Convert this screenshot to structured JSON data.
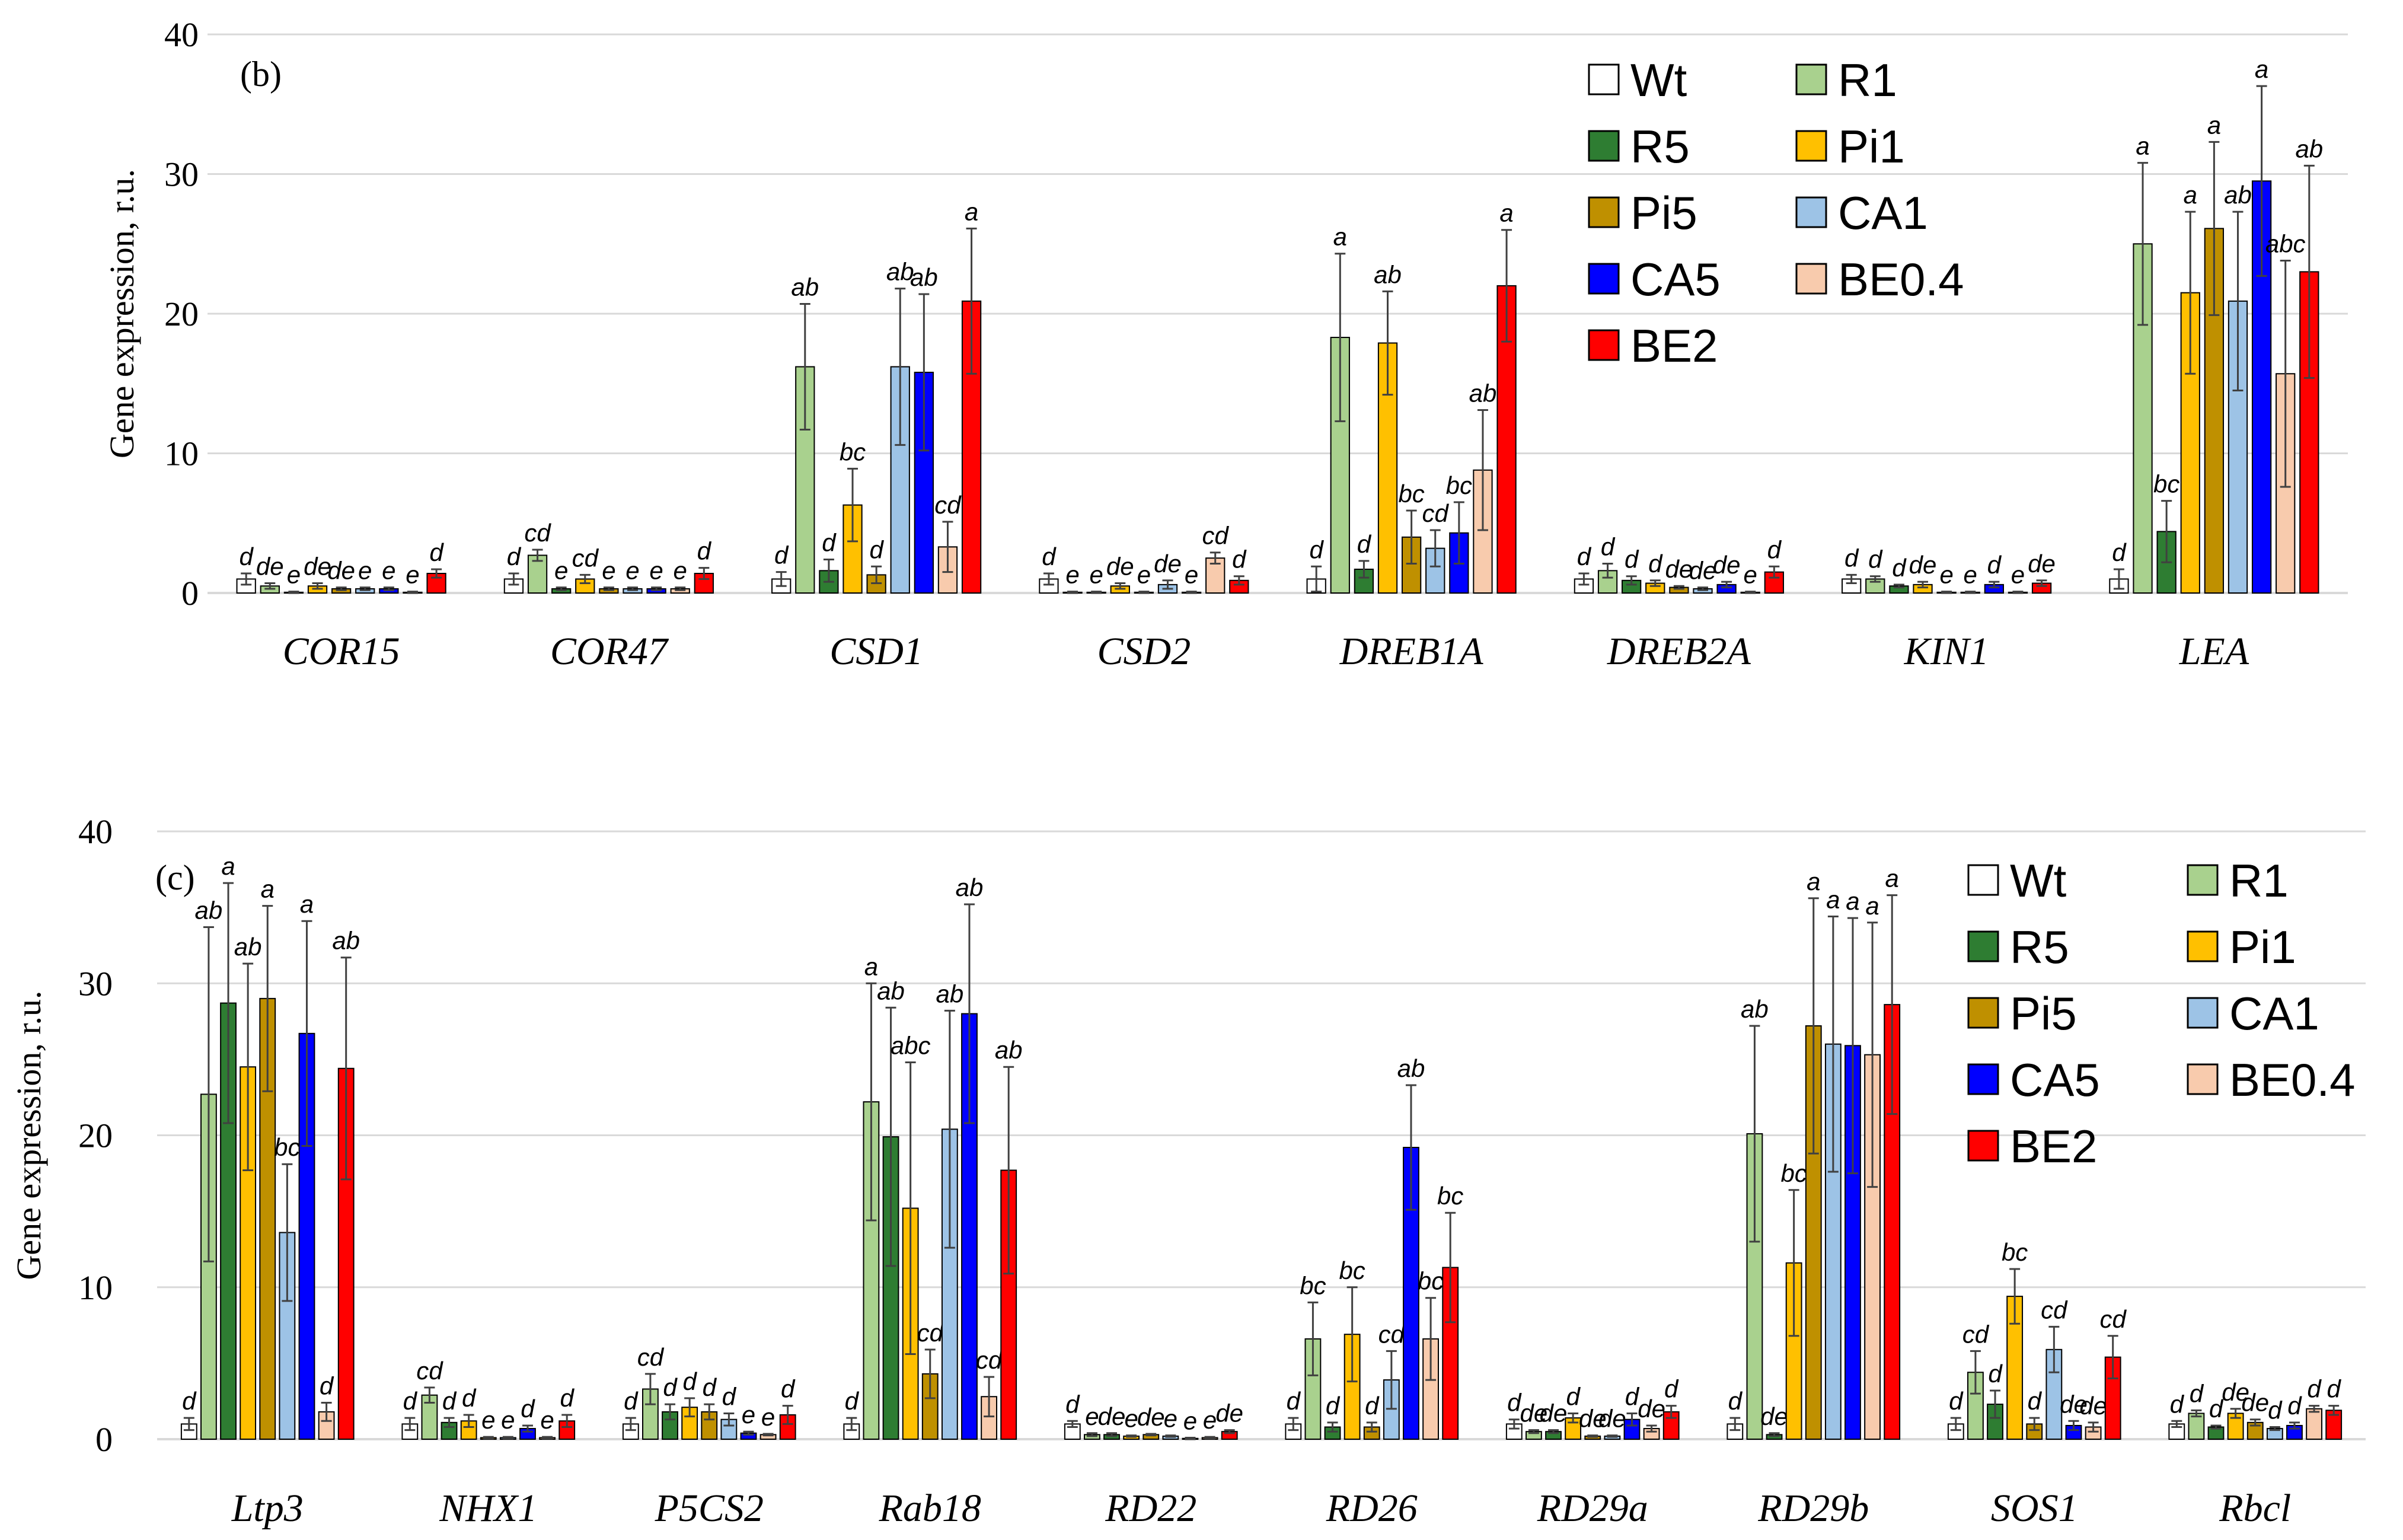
{
  "series_names": [
    "Wt",
    "R1",
    "R5",
    "Pi1",
    "Pi5",
    "CA1",
    "CA5",
    "BE0.4",
    "BE2"
  ],
  "series_colors": [
    "#ffffff",
    "#a9d18e",
    "#2e7d32",
    "#ffc000",
    "#bf9000",
    "#9dc3e6",
    "#0000ff",
    "#f8cbad",
    "#ff0000"
  ],
  "chart_data": [
    {
      "type": "bar",
      "panel": "(b)",
      "ylabel": "Gene expression,  r.u.",
      "ylim": [
        0,
        40
      ],
      "yticks": [
        0,
        10,
        20,
        30,
        40
      ],
      "categories": [
        "COR15",
        "COR47",
        "CSD1",
        "CSD2",
        "DREB1A",
        "DREB2A",
        "KIN1",
        "LEA"
      ],
      "series": [
        {
          "name": "Wt",
          "values": [
            1.0,
            1.0,
            1.0,
            1.0,
            1.0,
            1.0,
            1.0,
            1.0
          ],
          "errors": [
            0.4,
            0.4,
            0.5,
            0.4,
            0.9,
            0.4,
            0.3,
            0.7
          ],
          "labels": [
            "d",
            "d",
            "d",
            "d",
            "d",
            "d",
            "d",
            "d"
          ]
        },
        {
          "name": "R1",
          "values": [
            0.5,
            2.7,
            16.2,
            0.05,
            18.3,
            1.6,
            1.0,
            25.0
          ],
          "errors": [
            0.2,
            0.4,
            4.5,
            0.05,
            6.0,
            0.5,
            0.2,
            5.8
          ],
          "labels": [
            "de",
            "cd",
            "ab",
            "e",
            "a",
            "d",
            "d",
            "a"
          ]
        },
        {
          "name": "R5",
          "values": [
            0.05,
            0.3,
            1.6,
            0.05,
            1.7,
            0.9,
            0.5,
            4.4
          ],
          "errors": [
            0.05,
            0.1,
            0.8,
            0.05,
            0.6,
            0.3,
            0.1,
            2.2
          ],
          "labels": [
            "e",
            "e",
            "d",
            "e",
            "d",
            "d",
            "d",
            "bc"
          ]
        },
        {
          "name": "Pi1",
          "values": [
            0.5,
            1.0,
            6.3,
            0.5,
            17.9,
            0.7,
            0.6,
            21.5
          ],
          "errors": [
            0.2,
            0.3,
            2.6,
            0.2,
            3.7,
            0.2,
            0.2,
            5.8
          ],
          "labels": [
            "de",
            "cd",
            "bc",
            "de",
            "ab",
            "d",
            "de",
            "a"
          ]
        },
        {
          "name": "Pi5",
          "values": [
            0.3,
            0.3,
            1.3,
            0.05,
            4.0,
            0.4,
            0.05,
            26.1
          ],
          "errors": [
            0.1,
            0.1,
            0.6,
            0.05,
            1.9,
            0.1,
            0.05,
            6.2
          ],
          "labels": [
            "de",
            "e",
            "d",
            "e",
            "bc",
            "de",
            "e",
            "a"
          ]
        },
        {
          "name": "CA1",
          "values": [
            0.3,
            0.3,
            16.2,
            0.6,
            3.2,
            0.3,
            0.05,
            20.9
          ],
          "errors": [
            0.1,
            0.1,
            5.6,
            0.3,
            1.3,
            0.1,
            0.05,
            6.4
          ],
          "labels": [
            "e",
            "e",
            "ab",
            "de",
            "cd",
            "de",
            "e",
            "ab"
          ]
        },
        {
          "name": "CA5",
          "values": [
            0.3,
            0.3,
            15.8,
            0.05,
            4.3,
            0.6,
            0.6,
            29.5
          ],
          "errors": [
            0.1,
            0.1,
            5.6,
            0.05,
            2.2,
            0.2,
            0.2,
            6.8
          ],
          "labels": [
            "e",
            "e",
            "ab",
            "e",
            "bc",
            "de",
            "d",
            "a"
          ]
        },
        {
          "name": "BE0.4",
          "values": [
            0.05,
            0.3,
            3.3,
            2.5,
            8.8,
            0.05,
            0.05,
            15.7
          ],
          "errors": [
            0.05,
            0.1,
            1.8,
            0.4,
            4.3,
            0.05,
            0.05,
            8.1
          ],
          "labels": [
            "e",
            "e",
            "cd",
            "cd",
            "ab",
            "e",
            "e",
            "abc"
          ]
        },
        {
          "name": "BE2",
          "values": [
            1.4,
            1.4,
            20.9,
            0.9,
            22.0,
            1.5,
            0.7,
            23.0
          ],
          "errors": [
            0.3,
            0.4,
            5.2,
            0.3,
            4.0,
            0.4,
            0.2,
            7.6
          ],
          "labels": [
            "d",
            "d",
            "a",
            "d",
            "a",
            "d",
            "de",
            "ab"
          ]
        }
      ]
    },
    {
      "type": "bar",
      "panel": "(c)",
      "ylabel": "Gene expression,  r.u.",
      "ylim": [
        0,
        40
      ],
      "yticks": [
        0,
        10,
        20,
        30,
        40
      ],
      "categories": [
        "Ltp3",
        "NHX1",
        "P5CS2",
        "Rab18",
        "RD22",
        "RD26",
        "RD29a",
        "RD29b",
        "SOS1",
        "Rbcl"
      ],
      "series": [
        {
          "name": "Wt",
          "values": [
            1.0,
            1.0,
            1.0,
            1.0,
            1.0,
            1.0,
            1.0,
            1.0,
            1.0,
            1.0
          ],
          "errors": [
            0.4,
            0.4,
            0.4,
            0.4,
            0.2,
            0.4,
            0.3,
            0.4,
            0.4,
            0.2
          ],
          "labels": [
            "d",
            "d",
            "d",
            "d",
            "d",
            "d",
            "d",
            "d",
            "d",
            "d"
          ]
        },
        {
          "name": "R1",
          "values": [
            22.7,
            2.9,
            3.3,
            22.2,
            0.3,
            6.6,
            0.5,
            20.1,
            4.4,
            1.7
          ],
          "errors": [
            11.0,
            0.5,
            1.0,
            7.8,
            0.1,
            2.4,
            0.1,
            7.1,
            1.4,
            0.2
          ],
          "labels": [
            "ab",
            "cd",
            "cd",
            "a",
            "e",
            "bc",
            "de",
            "ab",
            "cd",
            "d"
          ]
        },
        {
          "name": "R5",
          "values": [
            28.7,
            1.1,
            1.8,
            19.9,
            0.3,
            0.8,
            0.5,
            0.3,
            2.3,
            0.8
          ],
          "errors": [
            7.9,
            0.3,
            0.5,
            8.5,
            0.1,
            0.3,
            0.1,
            0.1,
            0.9,
            0.1
          ],
          "labels": [
            "a",
            "d",
            "d",
            "ab",
            "de",
            "d",
            "de",
            "de",
            "d",
            "d"
          ]
        },
        {
          "name": "Pi1",
          "values": [
            24.5,
            1.2,
            2.1,
            15.2,
            0.2,
            6.9,
            1.4,
            11.6,
            9.4,
            1.7
          ],
          "errors": [
            6.8,
            0.4,
            0.6,
            9.6,
            0.05,
            3.1,
            0.3,
            4.8,
            1.8,
            0.3
          ],
          "labels": [
            "ab",
            "d",
            "d",
            "abc",
            "e",
            "bc",
            "d",
            "bc",
            "bc",
            "de"
          ]
        },
        {
          "name": "Pi5",
          "values": [
            29.0,
            0.1,
            1.8,
            4.3,
            0.3,
            0.8,
            0.2,
            27.2,
            1.0,
            1.1
          ],
          "errors": [
            6.1,
            0.05,
            0.5,
            1.6,
            0.05,
            0.3,
            0.05,
            8.4,
            0.4,
            0.2
          ],
          "labels": [
            "a",
            "e",
            "d",
            "cd",
            "de",
            "d",
            "de",
            "a",
            "d",
            "de"
          ]
        },
        {
          "name": "CA1",
          "values": [
            13.6,
            0.1,
            1.3,
            20.4,
            0.2,
            3.9,
            0.2,
            26.0,
            5.9,
            0.7
          ],
          "errors": [
            4.5,
            0.05,
            0.4,
            7.8,
            0.05,
            1.9,
            0.05,
            8.4,
            1.5,
            0.1
          ],
          "labels": [
            "bc",
            "e",
            "d",
            "ab",
            "e",
            "cd",
            "de",
            "a",
            "cd",
            "d"
          ]
        },
        {
          "name": "CA5",
          "values": [
            26.7,
            0.7,
            0.4,
            28.0,
            0.05,
            19.2,
            1.3,
            25.9,
            0.9,
            0.9
          ],
          "errors": [
            7.4,
            0.2,
            0.1,
            7.2,
            0.05,
            4.1,
            0.4,
            8.4,
            0.3,
            0.2
          ],
          "labels": [
            "a",
            "d",
            "e",
            "ab",
            "e",
            "ab",
            "d",
            "a",
            "de",
            "d"
          ]
        },
        {
          "name": "BE0.4",
          "values": [
            1.8,
            0.1,
            0.3,
            2.8,
            0.1,
            6.6,
            0.7,
            25.3,
            0.8,
            2.0
          ],
          "errors": [
            0.6,
            0.05,
            0.05,
            1.3,
            0.05,
            2.7,
            0.2,
            8.7,
            0.3,
            0.2
          ],
          "labels": [
            "d",
            "e",
            "e",
            "cd",
            "e",
            "bc",
            "de",
            "a",
            "de",
            "d"
          ]
        },
        {
          "name": "BE2",
          "values": [
            24.4,
            1.2,
            1.6,
            17.7,
            0.5,
            11.3,
            1.8,
            28.6,
            5.4,
            1.9
          ],
          "errors": [
            7.3,
            0.4,
            0.6,
            6.8,
            0.1,
            3.6,
            0.4,
            7.2,
            1.4,
            0.3
          ],
          "labels": [
            "ab",
            "d",
            "d",
            "ab",
            "de",
            "bc",
            "d",
            "a",
            "cd",
            "d"
          ]
        }
      ]
    }
  ]
}
